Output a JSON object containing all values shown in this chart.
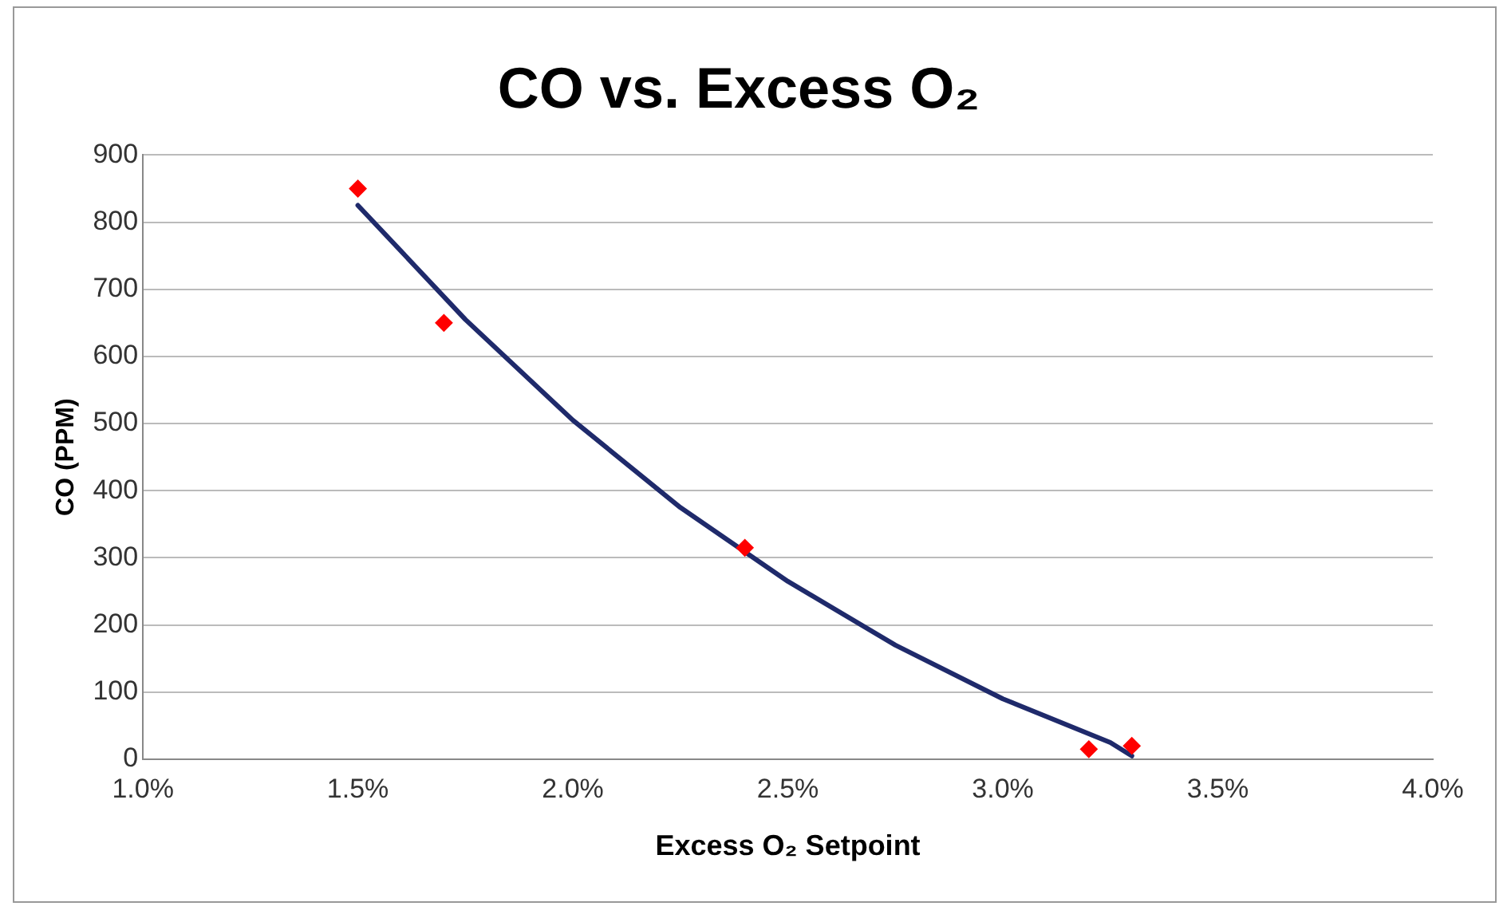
{
  "chart_data": {
    "type": "scatter",
    "title": "CO vs. Excess O₂",
    "xlabel": "Excess O₂ Setpoint",
    "ylabel": "CO (PPM)",
    "series": [
      {
        "type": "scatter",
        "color": "#ff0000",
        "marker": "diamond",
        "x": [
          1.5,
          1.7,
          2.4,
          3.2,
          3.3
        ],
        "values": [
          850,
          650,
          315,
          15,
          20
        ]
      },
      {
        "type": "line",
        "color": "#1f2a6b",
        "marker": "none",
        "x": [
          1.5,
          1.75,
          2.0,
          2.25,
          2.5,
          2.75,
          3.0,
          3.25,
          3.3
        ],
        "values": [
          825,
          655,
          505,
          375,
          265,
          170,
          90,
          25,
          5
        ]
      }
    ],
    "xlim": [
      1.0,
      4.0
    ],
    "xticks": [
      {
        "value": 1.0,
        "label": "1.0%"
      },
      {
        "value": 1.5,
        "label": "1.5%"
      },
      {
        "value": 2.0,
        "label": "2.0%"
      },
      {
        "value": 2.5,
        "label": "2.5%"
      },
      {
        "value": 3.0,
        "label": "3.0%"
      },
      {
        "value": 3.5,
        "label": "3.5%"
      },
      {
        "value": 4.0,
        "label": "4.0%"
      }
    ],
    "ylim": [
      0,
      900
    ],
    "yticks": [
      0,
      100,
      200,
      300,
      400,
      500,
      600,
      700,
      800,
      900
    ],
    "grid": "y",
    "legend": false
  }
}
